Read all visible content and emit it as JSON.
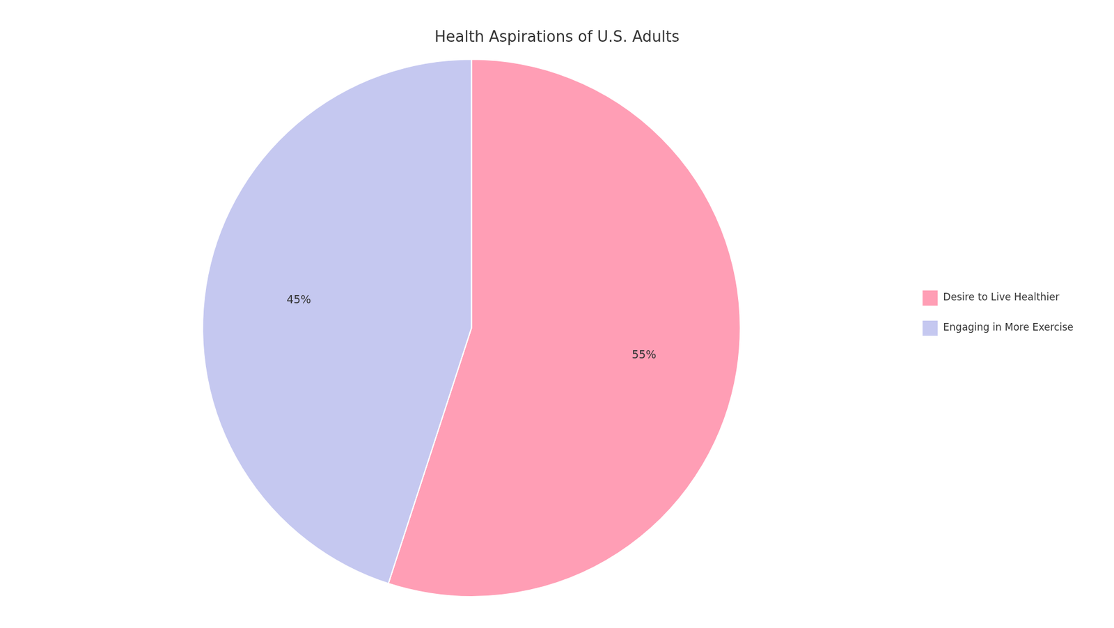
{
  "chart_data": {
    "type": "pie",
    "title": "Health Aspirations of U.S. Adults",
    "categories": [
      "Desire to Live Healthier",
      "Engaging in More Exercise"
    ],
    "values": [
      55,
      45
    ],
    "value_labels": [
      "55%",
      "45%"
    ],
    "colors": [
      "#FF9EB5",
      "#C5C8F0"
    ],
    "data_labels": true,
    "legend": "right"
  }
}
